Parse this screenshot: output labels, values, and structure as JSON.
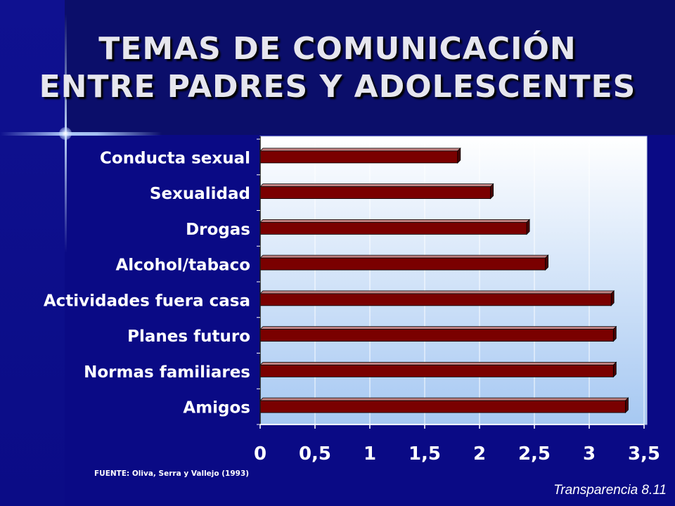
{
  "slide": {
    "title_line1": "TEMAS DE COMUNICACIÓN",
    "title_line2": "ENTRE PADRES Y ADOLESCENTES",
    "source": "FUENTE: Oliva, Serra y Vallejo  (1993)",
    "footer": "Transparencia  8.11"
  },
  "colors": {
    "bar": "#7a0000",
    "bar_top": "#c08080",
    "plot_bg_top": "#ffffff",
    "plot_bg_bottom": "#a6c8f2",
    "text": "#ffffff"
  },
  "chart_data": {
    "type": "bar",
    "orientation": "horizontal",
    "categories": [
      "Conducta sexual",
      "Sexualidad",
      "Drogas",
      "Alcohol/tabaco",
      "Actividades fuera casa",
      "Planes futuro",
      "Normas familiares",
      "Amigos"
    ],
    "values": [
      1.8,
      2.1,
      2.43,
      2.6,
      3.2,
      3.22,
      3.22,
      3.33
    ],
    "xlim": [
      0,
      3.5
    ],
    "ticks": [
      "0",
      "0,5",
      "1",
      "1,5",
      "2",
      "2,5",
      "3",
      "3,5"
    ],
    "tick_values": [
      0,
      0.5,
      1,
      1.5,
      2,
      2.5,
      3,
      3.5
    ],
    "title": "",
    "xlabel": "",
    "ylabel": "",
    "grid": true,
    "legend": "none"
  }
}
